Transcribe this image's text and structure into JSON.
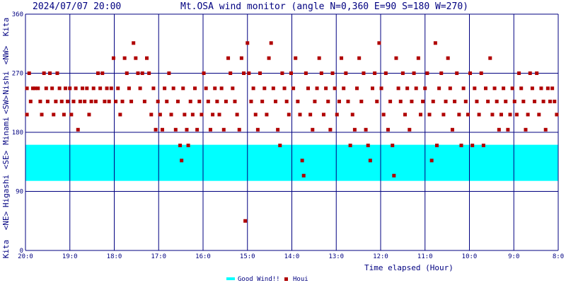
{
  "header": {
    "datetime": "2024/07/07 20:00",
    "title": "Mt.OSA wind monitor (angle N=0,360 E=90 S=180 W=270)"
  },
  "y_axis_labels": {
    "kita_top": "Kita",
    "nishi_nw": "<NW>",
    "nishi": "Nishi",
    "sw": "<SW>",
    "minami": "Minami",
    "se": "<SE>",
    "higashi": "Higashi",
    "ne": "<NE>",
    "kita_bottom": "Kita"
  },
  "legend": {
    "good_wind": "Good Wind!!",
    "houi": "Houi"
  },
  "colors": {
    "axis": "#000080",
    "good_band": "#00ffff",
    "marker": "#b00000",
    "background": "#ffffff"
  },
  "chart_data": {
    "type": "scatter",
    "title": "Mt.OSA wind monitor (angle N=0,360 E=90 S=180 W=270)",
    "xlabel": "Time elapsed (Hour)",
    "ylabel": "",
    "x_ticks": [
      "20:0",
      "19:0",
      "18:0",
      "17:0",
      "16:0",
      "15:0",
      "14:0",
      "13:0",
      "12:0",
      "11:0",
      "10:0",
      "9:0",
      "8:0"
    ],
    "x_range": [
      "20:00",
      "8:00"
    ],
    "ylim": [
      0,
      360
    ],
    "y_ticks": [
      0,
      90,
      180,
      270,
      360
    ],
    "good_wind_range": [
      106,
      161
    ],
    "series": [
      {
        "name": "Houi",
        "points": [
          [
            "19:58",
            247
          ],
          [
            "19:58",
            207
          ],
          [
            "19:55",
            270
          ],
          [
            "19:53",
            227
          ],
          [
            "19:50",
            247
          ],
          [
            "19:47",
            247
          ],
          [
            "19:43",
            247
          ],
          [
            "19:40",
            227
          ],
          [
            "19:38",
            207
          ],
          [
            "19:35",
            270
          ],
          [
            "19:32",
            247
          ],
          [
            "19:30",
            227
          ],
          [
            "19:27",
            270
          ],
          [
            "19:24",
            247
          ],
          [
            "19:22",
            207
          ],
          [
            "19:19",
            227
          ],
          [
            "19:17",
            270
          ],
          [
            "19:14",
            247
          ],
          [
            "19:11",
            227
          ],
          [
            "19:08",
            207
          ],
          [
            "19:06",
            247
          ],
          [
            "19:03",
            227
          ],
          [
            "19:00",
            247
          ],
          [
            "18:58",
            207
          ],
          [
            "18:55",
            227
          ],
          [
            "18:52",
            247
          ],
          [
            "18:49",
            184
          ],
          [
            "18:46",
            227
          ],
          [
            "18:43",
            247
          ],
          [
            "18:40",
            227
          ],
          [
            "18:37",
            247
          ],
          [
            "18:34",
            207
          ],
          [
            "18:31",
            227
          ],
          [
            "18:28",
            247
          ],
          [
            "18:25",
            227
          ],
          [
            "18:22",
            270
          ],
          [
            "18:19",
            247
          ],
          [
            "18:16",
            270
          ],
          [
            "18:13",
            227
          ],
          [
            "18:10",
            247
          ],
          [
            "18:07",
            227
          ],
          [
            "18:04",
            247
          ],
          [
            "18:01",
            293
          ],
          [
            "17:58",
            227
          ],
          [
            "17:55",
            247
          ],
          [
            "17:52",
            207
          ],
          [
            "17:49",
            227
          ],
          [
            "17:46",
            293
          ],
          [
            "17:43",
            270
          ],
          [
            "17:40",
            247
          ],
          [
            "17:37",
            227
          ],
          [
            "17:34",
            316
          ],
          [
            "17:31",
            293
          ],
          [
            "17:28",
            270
          ],
          [
            "17:25",
            247
          ],
          [
            "17:22",
            270
          ],
          [
            "17:19",
            227
          ],
          [
            "17:16",
            293
          ],
          [
            "17:13",
            270
          ],
          [
            "17:10",
            207
          ],
          [
            "17:07",
            247
          ],
          [
            "17:04",
            184
          ],
          [
            "17:01",
            227
          ],
          [
            "16:58",
            207
          ],
          [
            "16:55",
            184
          ],
          [
            "16:52",
            247
          ],
          [
            "16:49",
            227
          ],
          [
            "16:46",
            270
          ],
          [
            "16:43",
            207
          ],
          [
            "16:40",
            247
          ],
          [
            "16:37",
            184
          ],
          [
            "16:34",
            227
          ],
          [
            "16:31",
            160
          ],
          [
            "16:29",
            137
          ],
          [
            "16:27",
            247
          ],
          [
            "16:25",
            207
          ],
          [
            "16:22",
            184
          ],
          [
            "16:20",
            160
          ],
          [
            "16:17",
            227
          ],
          [
            "16:14",
            207
          ],
          [
            "16:11",
            247
          ],
          [
            "16:08",
            184
          ],
          [
            "16:05",
            227
          ],
          [
            "16:02",
            207
          ],
          [
            "15:59",
            270
          ],
          [
            "15:56",
            247
          ],
          [
            "15:53",
            227
          ],
          [
            "15:50",
            184
          ],
          [
            "15:47",
            207
          ],
          [
            "15:44",
            247
          ],
          [
            "15:41",
            227
          ],
          [
            "15:38",
            207
          ],
          [
            "15:35",
            247
          ],
          [
            "15:32",
            184
          ],
          [
            "15:29",
            227
          ],
          [
            "15:26",
            293
          ],
          [
            "15:23",
            270
          ],
          [
            "15:20",
            247
          ],
          [
            "15:17",
            227
          ],
          [
            "15:14",
            207
          ],
          [
            "15:11",
            184
          ],
          [
            "15:08",
            293
          ],
          [
            "15:05",
            270
          ],
          [
            "15:03",
            45
          ],
          [
            "15:00",
            316
          ],
          [
            "14:58",
            270
          ],
          [
            "14:55",
            227
          ],
          [
            "14:52",
            247
          ],
          [
            "14:49",
            207
          ],
          [
            "14:46",
            184
          ],
          [
            "14:43",
            270
          ],
          [
            "14:40",
            227
          ],
          [
            "14:37",
            247
          ],
          [
            "14:34",
            207
          ],
          [
            "14:31",
            293
          ],
          [
            "14:28",
            316
          ],
          [
            "14:25",
            247
          ],
          [
            "14:22",
            227
          ],
          [
            "14:19",
            184
          ],
          [
            "14:16",
            160
          ],
          [
            "14:13",
            270
          ],
          [
            "14:10",
            247
          ],
          [
            "14:07",
            227
          ],
          [
            "14:04",
            207
          ],
          [
            "14:01",
            270
          ],
          [
            "13:58",
            247
          ],
          [
            "13:55",
            293
          ],
          [
            "13:52",
            227
          ],
          [
            "13:49",
            207
          ],
          [
            "13:46",
            137
          ],
          [
            "13:44",
            114
          ],
          [
            "13:41",
            270
          ],
          [
            "13:38",
            247
          ],
          [
            "13:35",
            207
          ],
          [
            "13:32",
            184
          ],
          [
            "13:29",
            227
          ],
          [
            "13:26",
            247
          ],
          [
            "13:23",
            293
          ],
          [
            "13:20",
            270
          ],
          [
            "13:17",
            207
          ],
          [
            "13:14",
            247
          ],
          [
            "13:11",
            227
          ],
          [
            "13:08",
            184
          ],
          [
            "13:05",
            270
          ],
          [
            "13:02",
            247
          ],
          [
            "12:59",
            207
          ],
          [
            "12:56",
            227
          ],
          [
            "12:53",
            293
          ],
          [
            "12:50",
            247
          ],
          [
            "12:47",
            270
          ],
          [
            "12:44",
            227
          ],
          [
            "12:41",
            160
          ],
          [
            "12:38",
            207
          ],
          [
            "12:35",
            184
          ],
          [
            "12:32",
            247
          ],
          [
            "12:29",
            293
          ],
          [
            "12:26",
            227
          ],
          [
            "12:23",
            270
          ],
          [
            "12:20",
            184
          ],
          [
            "12:17",
            160
          ],
          [
            "12:14",
            137
          ],
          [
            "12:11",
            247
          ],
          [
            "12:08",
            270
          ],
          [
            "12:05",
            227
          ],
          [
            "12:02",
            316
          ],
          [
            "11:59",
            247
          ],
          [
            "11:56",
            207
          ],
          [
            "11:53",
            270
          ],
          [
            "11:50",
            184
          ],
          [
            "11:47",
            227
          ],
          [
            "11:44",
            160
          ],
          [
            "11:42",
            114
          ],
          [
            "11:39",
            293
          ],
          [
            "11:36",
            247
          ],
          [
            "11:33",
            227
          ],
          [
            "11:30",
            270
          ],
          [
            "11:27",
            207
          ],
          [
            "11:24",
            247
          ],
          [
            "11:21",
            184
          ],
          [
            "11:18",
            227
          ],
          [
            "11:15",
            270
          ],
          [
            "11:12",
            247
          ],
          [
            "11:09",
            293
          ],
          [
            "11:06",
            207
          ],
          [
            "11:03",
            227
          ],
          [
            "11:00",
            247
          ],
          [
            "10:57",
            270
          ],
          [
            "10:54",
            207
          ],
          [
            "10:51",
            137
          ],
          [
            "10:49",
            227
          ],
          [
            "10:46",
            316
          ],
          [
            "10:44",
            160
          ],
          [
            "10:41",
            247
          ],
          [
            "10:38",
            270
          ],
          [
            "10:35",
            207
          ],
          [
            "10:32",
            227
          ],
          [
            "10:29",
            293
          ],
          [
            "10:26",
            247
          ],
          [
            "10:23",
            184
          ],
          [
            "10:20",
            227
          ],
          [
            "10:17",
            270
          ],
          [
            "10:14",
            207
          ],
          [
            "10:11",
            160
          ],
          [
            "10:08",
            247
          ],
          [
            "10:05",
            227
          ],
          [
            "10:02",
            207
          ],
          [
            "09:59",
            270
          ],
          [
            "09:56",
            160
          ],
          [
            "09:53",
            247
          ],
          [
            "09:50",
            227
          ],
          [
            "09:47",
            207
          ],
          [
            "09:44",
            270
          ],
          [
            "09:41",
            160
          ],
          [
            "09:38",
            247
          ],
          [
            "09:35",
            227
          ],
          [
            "09:32",
            293
          ],
          [
            "09:29",
            207
          ],
          [
            "09:26",
            247
          ],
          [
            "09:23",
            227
          ],
          [
            "09:20",
            184
          ],
          [
            "09:17",
            207
          ],
          [
            "09:14",
            247
          ],
          [
            "09:11",
            227
          ],
          [
            "09:08",
            184
          ],
          [
            "09:05",
            207
          ],
          [
            "09:02",
            247
          ],
          [
            "08:59",
            227
          ],
          [
            "08:56",
            207
          ],
          [
            "08:53",
            270
          ],
          [
            "08:50",
            247
          ],
          [
            "08:47",
            227
          ],
          [
            "08:44",
            184
          ],
          [
            "08:41",
            207
          ],
          [
            "08:38",
            270
          ],
          [
            "08:35",
            247
          ],
          [
            "08:32",
            227
          ],
          [
            "08:29",
            270
          ],
          [
            "08:26",
            207
          ],
          [
            "08:23",
            247
          ],
          [
            "08:20",
            227
          ],
          [
            "08:17",
            184
          ],
          [
            "08:14",
            247
          ],
          [
            "08:11",
            227
          ],
          [
            "08:08",
            247
          ],
          [
            "08:05",
            227
          ],
          [
            "08:02",
            207
          ]
        ]
      }
    ]
  }
}
